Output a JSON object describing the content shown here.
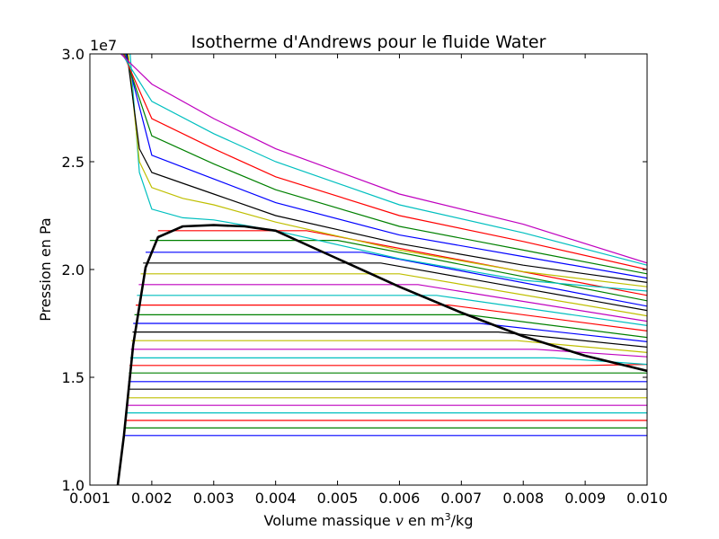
{
  "chart_data": {
    "type": "line",
    "title": "Isotherme d'Andrews pour le fluide Water",
    "xlabel_prefix": "Volume massique ",
    "xlabel_var": "v",
    "xlabel_mid": " en m",
    "xlabel_sup": "3",
    "xlabel_suffix": "/kg",
    "ylabel": "Pression en Pa",
    "y_offset_label": "1e7",
    "xlim": [
      0.001,
      0.01
    ],
    "ylim": [
      10000000,
      30000000
    ],
    "x_ticks": [
      0.001,
      0.002,
      0.003,
      0.004,
      0.005,
      0.006,
      0.007,
      0.008,
      0.009,
      0.01
    ],
    "x_tick_labels": [
      "0.001",
      "0.002",
      "0.003",
      "0.004",
      "0.005",
      "0.006",
      "0.007",
      "0.008",
      "0.009",
      "0.010"
    ],
    "y_ticks": [
      10000000,
      15000000,
      20000000,
      25000000,
      30000000
    ],
    "y_tick_labels": [
      "1.0",
      "1.5",
      "2.0",
      "2.5",
      "3.0"
    ],
    "grid": false,
    "legend": "none",
    "color_cycle": [
      "#0000ff",
      "#008000",
      "#ff0000",
      "#00bfbf",
      "#bf00bf",
      "#bfbf00",
      "#000000"
    ],
    "series": [
      {
        "color": "#0000ff",
        "values": [
          [
            0.00155,
            12300000
          ],
          [
            0.01,
            12300000
          ]
        ]
      },
      {
        "color": "#008000",
        "values": [
          [
            0.00158,
            12650000
          ],
          [
            0.01,
            12650000
          ]
        ]
      },
      {
        "color": "#ff0000",
        "values": [
          [
            0.00158,
            13000000
          ],
          [
            0.01,
            13000000
          ]
        ]
      },
      {
        "color": "#00bfbf",
        "values": [
          [
            0.00159,
            13350000
          ],
          [
            0.01,
            13350000
          ]
        ]
      },
      {
        "color": "#bf00bf",
        "values": [
          [
            0.0016,
            13700000
          ],
          [
            0.01,
            13700000
          ]
        ]
      },
      {
        "color": "#bfbf00",
        "values": [
          [
            0.0016,
            14050000
          ],
          [
            0.01,
            14050000
          ]
        ]
      },
      {
        "color": "#000000",
        "values": [
          [
            0.00161,
            14450000
          ],
          [
            0.01,
            14450000
          ]
        ]
      },
      {
        "color": "#0000ff",
        "values": [
          [
            0.00162,
            14800000
          ],
          [
            0.01,
            14800000
          ]
        ]
      },
      {
        "color": "#008000",
        "values": [
          [
            0.00163,
            15200000
          ],
          [
            0.01,
            15200000
          ]
        ]
      },
      {
        "color": "#ff0000",
        "values": [
          [
            0.00164,
            15550000
          ],
          [
            0.009,
            15550000
          ],
          [
            0.01,
            15600000
          ]
        ]
      },
      {
        "color": "#00bfbf",
        "values": [
          [
            0.00165,
            15900000
          ],
          [
            0.0085,
            15900000
          ],
          [
            0.01,
            15600000
          ]
        ]
      },
      {
        "color": "#bf00bf",
        "values": [
          [
            0.00166,
            16300000
          ],
          [
            0.0082,
            16300000
          ],
          [
            0.01,
            15950000
          ]
        ]
      },
      {
        "color": "#bfbf00",
        "values": [
          [
            0.00167,
            16700000
          ],
          [
            0.0079,
            16700000
          ],
          [
            0.01,
            16150000
          ]
        ]
      },
      {
        "color": "#000000",
        "values": [
          [
            0.00169,
            17100000
          ],
          [
            0.0076,
            17100000
          ],
          [
            0.01,
            16400000
          ]
        ]
      },
      {
        "color": "#0000ff",
        "values": [
          [
            0.0017,
            17500000
          ],
          [
            0.0073,
            17500000
          ],
          [
            0.01,
            16650000
          ]
        ]
      },
      {
        "color": "#008000",
        "values": [
          [
            0.00172,
            17900000
          ],
          [
            0.0071,
            17900000
          ],
          [
            0.01,
            16850000
          ]
        ]
      },
      {
        "color": "#ff0000",
        "values": [
          [
            0.00174,
            18350000
          ],
          [
            0.0068,
            18350000
          ],
          [
            0.01,
            17150000
          ]
        ]
      },
      {
        "color": "#00bfbf",
        "values": [
          [
            0.00176,
            18800000
          ],
          [
            0.0066,
            18800000
          ],
          [
            0.01,
            17400000
          ]
        ]
      },
      {
        "color": "#bf00bf",
        "values": [
          [
            0.00179,
            19300000
          ],
          [
            0.0063,
            19300000
          ],
          [
            0.01,
            17600000
          ]
        ]
      },
      {
        "color": "#bfbf00",
        "values": [
          [
            0.00182,
            19800000
          ],
          [
            0.006,
            19800000
          ],
          [
            0.01,
            17850000
          ]
        ]
      },
      {
        "color": "#000000",
        "values": [
          [
            0.00186,
            20300000
          ],
          [
            0.0057,
            20300000
          ],
          [
            0.01,
            18100000
          ]
        ]
      },
      {
        "color": "#0000ff",
        "values": [
          [
            0.0019,
            20800000
          ],
          [
            0.0054,
            20800000
          ],
          [
            0.01,
            18300000
          ]
        ]
      },
      {
        "color": "#008000",
        "values": [
          [
            0.00197,
            21350000
          ],
          [
            0.005,
            21350000
          ],
          [
            0.01,
            18550000
          ]
        ]
      },
      {
        "color": "#ff0000",
        "values": [
          [
            0.0021,
            21800000
          ],
          [
            0.0045,
            21800000
          ],
          [
            0.01,
            18800000
          ]
        ]
      },
      {
        "color": "#00bfbf",
        "values": [
          [
            0.00165,
            30000000
          ],
          [
            0.0018,
            24500000
          ],
          [
            0.002,
            22800000
          ],
          [
            0.0025,
            22400000
          ],
          [
            0.003,
            22300000
          ],
          [
            0.004,
            21800000
          ],
          [
            0.006,
            20500000
          ],
          [
            0.008,
            19500000
          ],
          [
            0.01,
            19000000
          ]
        ]
      },
      {
        "color": "#bfbf00",
        "values": [
          [
            0.00162,
            30000000
          ],
          [
            0.0018,
            25000000
          ],
          [
            0.002,
            23800000
          ],
          [
            0.0025,
            23300000
          ],
          [
            0.003,
            23000000
          ],
          [
            0.004,
            22200000
          ],
          [
            0.006,
            20900000
          ],
          [
            0.008,
            19900000
          ],
          [
            0.01,
            19200000
          ]
        ]
      },
      {
        "color": "#000000",
        "values": [
          [
            0.0016,
            30000000
          ],
          [
            0.0018,
            25600000
          ],
          [
            0.002,
            24500000
          ],
          [
            0.0025,
            24000000
          ],
          [
            0.003,
            23500000
          ],
          [
            0.004,
            22500000
          ],
          [
            0.006,
            21200000
          ],
          [
            0.008,
            20200000
          ],
          [
            0.01,
            19400000
          ]
        ]
      },
      {
        "color": "#0000ff",
        "values": [
          [
            0.00158,
            30000000
          ],
          [
            0.002,
            25300000
          ],
          [
            0.003,
            24200000
          ],
          [
            0.004,
            23100000
          ],
          [
            0.006,
            21600000
          ],
          [
            0.008,
            20600000
          ],
          [
            0.01,
            19600000
          ]
        ]
      },
      {
        "color": "#008000",
        "values": [
          [
            0.00156,
            30000000
          ],
          [
            0.002,
            26200000
          ],
          [
            0.003,
            24900000
          ],
          [
            0.004,
            23700000
          ],
          [
            0.006,
            22000000
          ],
          [
            0.008,
            20900000
          ],
          [
            0.01,
            19800000
          ]
        ]
      },
      {
        "color": "#ff0000",
        "values": [
          [
            0.00154,
            30000000
          ],
          [
            0.002,
            27000000
          ],
          [
            0.003,
            25600000
          ],
          [
            0.004,
            24300000
          ],
          [
            0.006,
            22500000
          ],
          [
            0.008,
            21300000
          ],
          [
            0.01,
            20000000
          ]
        ]
      },
      {
        "color": "#00bfbf",
        "values": [
          [
            0.00152,
            30000000
          ],
          [
            0.002,
            27800000
          ],
          [
            0.003,
            26300000
          ],
          [
            0.004,
            25000000
          ],
          [
            0.006,
            23000000
          ],
          [
            0.008,
            21700000
          ],
          [
            0.01,
            20200000
          ]
        ]
      },
      {
        "color": "#bf00bf",
        "values": [
          [
            0.0015,
            30000000
          ],
          [
            0.002,
            28600000
          ],
          [
            0.003,
            27000000
          ],
          [
            0.004,
            25600000
          ],
          [
            0.006,
            23500000
          ],
          [
            0.008,
            22100000
          ],
          [
            0.01,
            20300000
          ]
        ]
      }
    ],
    "saturation_curve": {
      "color": "#000000",
      "values": [
        [
          0.00145,
          10000000
        ],
        [
          0.00155,
          12300000
        ],
        [
          0.0017,
          16500000
        ],
        [
          0.0019,
          20100000
        ],
        [
          0.0021,
          21500000
        ],
        [
          0.0025,
          22000000
        ],
        [
          0.003,
          22060000
        ],
        [
          0.0035,
          22000000
        ],
        [
          0.004,
          21800000
        ],
        [
          0.005,
          20500000
        ],
        [
          0.006,
          19200000
        ],
        [
          0.007,
          18000000
        ],
        [
          0.008,
          16900000
        ],
        [
          0.009,
          16000000
        ],
        [
          0.01,
          15300000
        ]
      ]
    }
  }
}
